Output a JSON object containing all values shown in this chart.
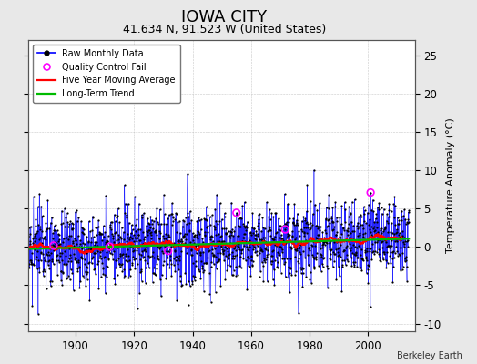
{
  "title": "IOWA CITY",
  "subtitle": "41.634 N, 91.523 W (United States)",
  "ylabel": "Temperature Anomaly (°C)",
  "attribution": "Berkeley Earth",
  "ylim": [
    -11,
    27
  ],
  "yticks": [
    -10,
    -5,
    0,
    5,
    10,
    15,
    20,
    25
  ],
  "year_start": 1880,
  "year_end": 2013,
  "xlim_start": 1884,
  "xlim_end": 2016,
  "background_color": "#e8e8e8",
  "plot_bg_color": "#ffffff",
  "raw_color": "#0000ff",
  "moving_avg_color": "#ff0000",
  "trend_color": "#00bb00",
  "qc_fail_color": "#ff00ff",
  "title_fontsize": 13,
  "subtitle_fontsize": 9,
  "label_fontsize": 8,
  "tick_fontsize": 8.5,
  "xticks": [
    1900,
    1920,
    1940,
    1960,
    1980,
    2000
  ],
  "noise_std": 2.5,
  "trend_total": 1.2
}
